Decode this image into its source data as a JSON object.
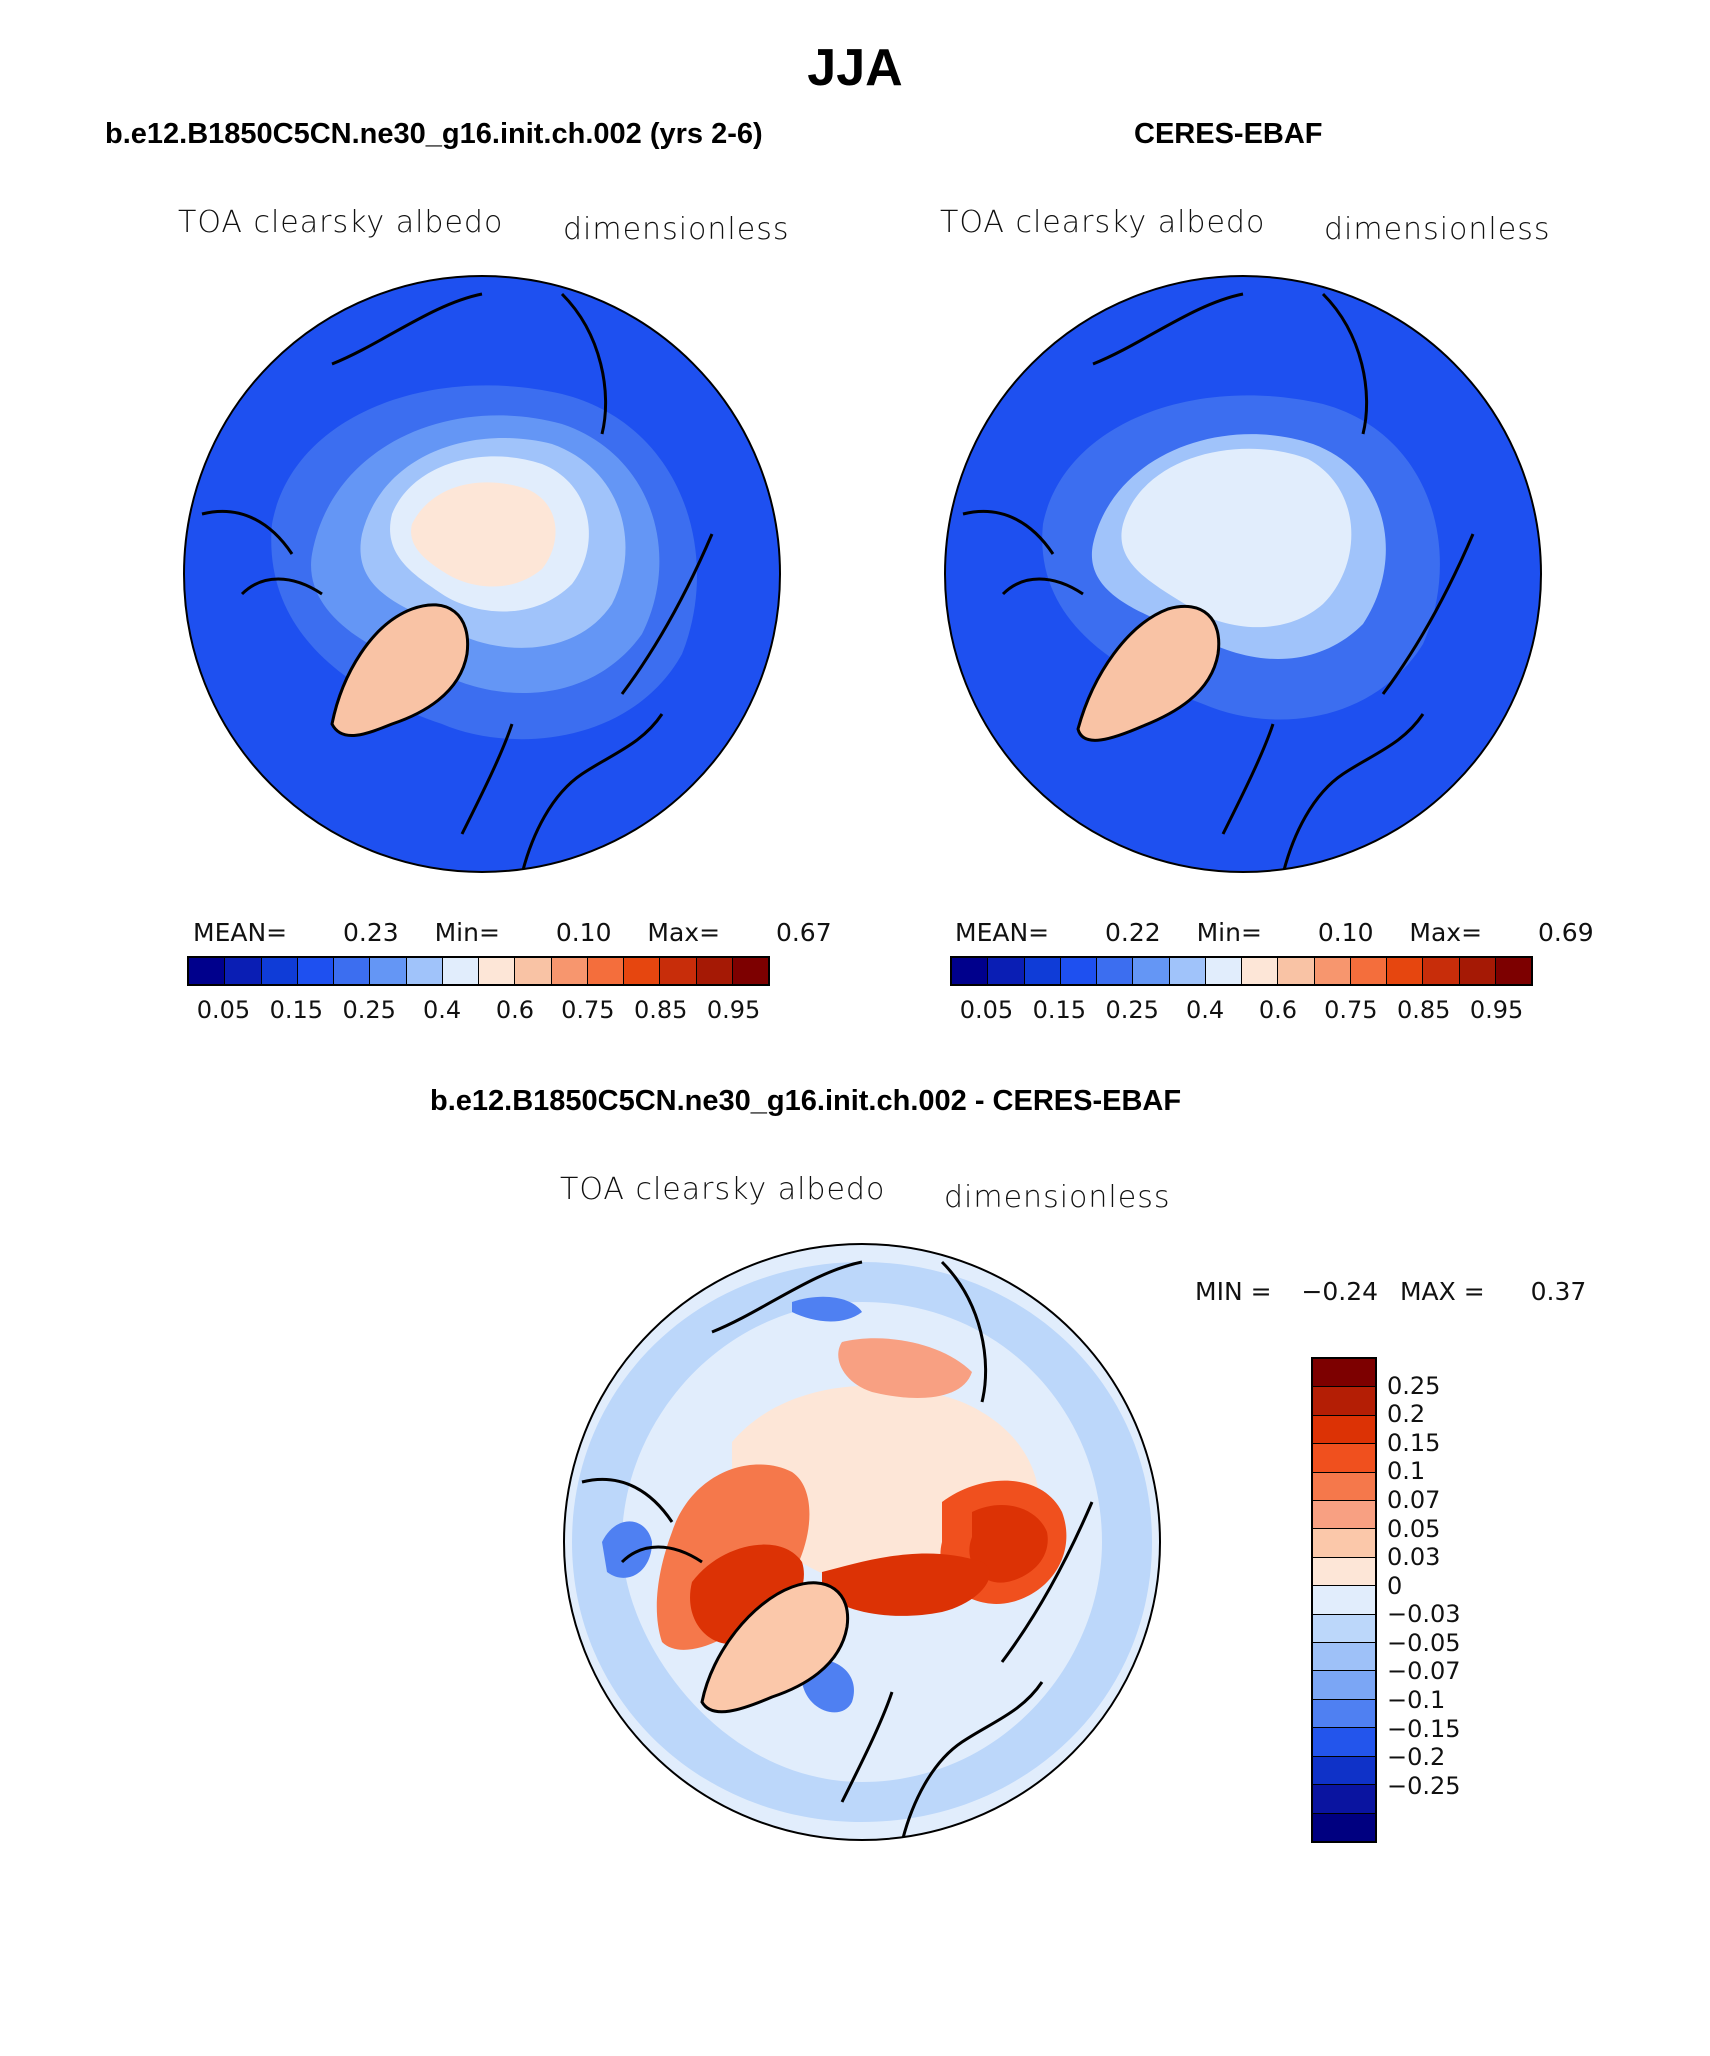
{
  "title": "JJA",
  "panels": [
    {
      "title": "b.e12.B1850C5CN.ne30_g16.init.ch.002 (yrs 2-6)",
      "variable": "TOA clearsky albedo",
      "units": "dimensionless",
      "stats": {
        "mean_label": "MEAN=",
        "mean": "0.23",
        "min_label": "Min=",
        "min": "0.10",
        "max_label": "Max=",
        "max": "0.67"
      }
    },
    {
      "title": "CERES-EBAF",
      "variable": "TOA clearsky albedo",
      "units": "dimensionless",
      "stats": {
        "mean_label": "MEAN=",
        "mean": "0.22",
        "min_label": "Min=",
        "min": "0.10",
        "max_label": "Max=",
        "max": "0.69"
      }
    }
  ],
  "abs_colorbar": {
    "colors": [
      "#00008c",
      "#0a1eb4",
      "#0f3cd7",
      "#1e50f0",
      "#3c6ef0",
      "#6496f5",
      "#a0c3fa",
      "#e1edfc",
      "#fde6d7",
      "#f9c3a5",
      "#f7966e",
      "#f46e3c",
      "#e6460f",
      "#c82d0a",
      "#a51905",
      "#7d0000"
    ],
    "tick_labels": [
      "0.05",
      "0.15",
      "0.25",
      "0.4",
      "0.6",
      "0.75",
      "0.85",
      "0.95"
    ]
  },
  "diff_panel": {
    "title": "b.e12.B1850C5CN.ne30_g16.init.ch.002 - CERES-EBAF",
    "variable": "TOA clearsky albedo",
    "units": "dimensionless",
    "stats": {
      "min_label": "MIN =",
      "min": "−0.24",
      "max_label": "MAX =",
      "max": "0.37"
    }
  },
  "diff_colorbar": {
    "colors": [
      "#7d0000",
      "#b41e05",
      "#dc3205",
      "#f0501e",
      "#f5784b",
      "#f8a082",
      "#fbc8aa",
      "#fde6d7",
      "#e1edfc",
      "#bcd7fa",
      "#9ec1f8",
      "#7ba6f5",
      "#4f80f2",
      "#2355ec",
      "#0f32c8",
      "#0a14a0",
      "#000080"
    ],
    "tick_labels": [
      "0.25",
      "0.2",
      "0.15",
      "0.1",
      "0.07",
      "0.05",
      "0.03",
      "0",
      "−0.03",
      "−0.05",
      "−0.07",
      "−0.1",
      "−0.15",
      "−0.2",
      "−0.25"
    ]
  }
}
